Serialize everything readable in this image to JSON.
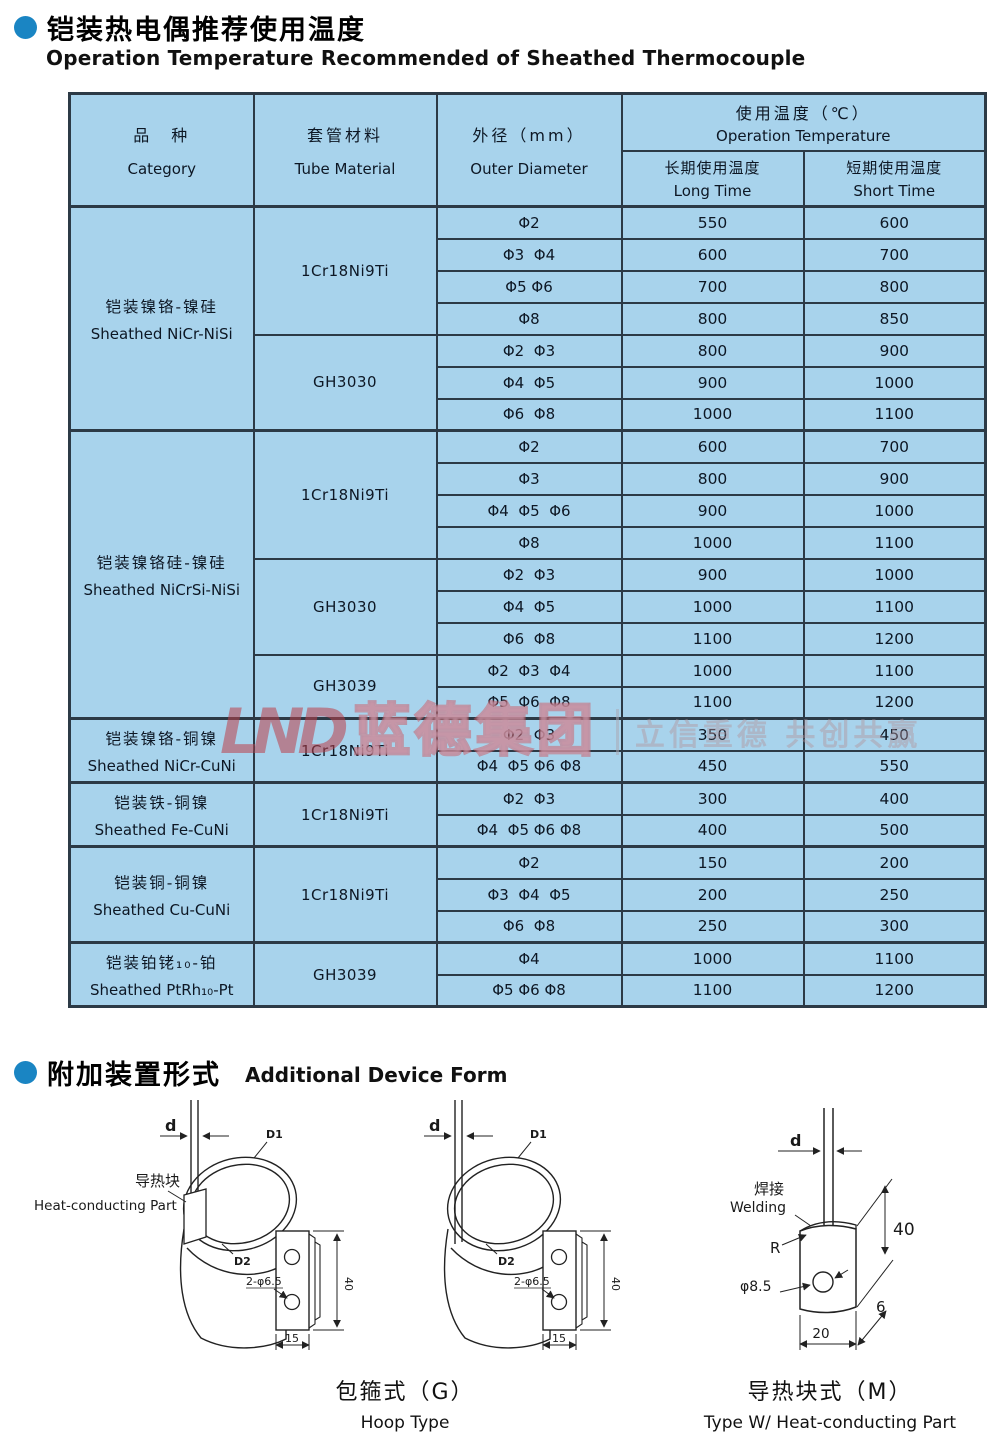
{
  "titles": {
    "main_zh": "铠装热电偶推荐使用温度",
    "main_en": "Operation Temperature Recommended of Sheathed Thermocouple",
    "section2_zh": "附加装置形式",
    "section2_en": "Additional Device Form"
  },
  "watermark": {
    "logo": "LND",
    "company": "蓝德集团",
    "slogan": "立信重德 共创共赢"
  },
  "colors": {
    "cell_blue": "#a8d3ec",
    "border": "#2c3a46",
    "bullet_blue": "#1a85c3",
    "watermark_red": "#bb404a"
  },
  "table": {
    "header": {
      "category_zh": "品　种",
      "category_en": "Category",
      "tube_zh": "套管材料",
      "tube_en": "Tube Material",
      "od_zh": "外径（mm）",
      "od_en": "Outer Diameter",
      "temp_zh": "使用温度（℃）",
      "temp_en": "Operation Temperature",
      "long_zh": "长期使用温度",
      "long_en": "Long Time",
      "short_zh": "短期使用温度",
      "short_en": "Short Time"
    },
    "sections": [
      {
        "category_zh": "铠装镍铬-镍硅",
        "category_en": "Sheathed NiCr-NiSi",
        "materials": [
          {
            "name": "1Cr18Ni9Ti",
            "rows": [
              {
                "od": "Φ2",
                "long": "550",
                "short": "600"
              },
              {
                "od": "Φ3  Φ4",
                "long": "600",
                "short": "700"
              },
              {
                "od": "Φ5 Φ6",
                "long": "700",
                "short": "800"
              },
              {
                "od": "Φ8",
                "long": "800",
                "short": "850"
              }
            ]
          },
          {
            "name": "GH3030",
            "rows": [
              {
                "od": "Φ2  Φ3",
                "long": "800",
                "short": "900"
              },
              {
                "od": "Φ4  Φ5",
                "long": "900",
                "short": "1000"
              },
              {
                "od": "Φ6  Φ8",
                "long": "1000",
                "short": "1100"
              }
            ]
          }
        ]
      },
      {
        "category_zh": "铠装镍铬硅-镍硅",
        "category_en": "Sheathed NiCrSi-NiSi",
        "materials": [
          {
            "name": "1Cr18Ni9Ti",
            "rows": [
              {
                "od": "Φ2",
                "long": "600",
                "short": "700"
              },
              {
                "od": "Φ3",
                "long": "800",
                "short": "900"
              },
              {
                "od": "Φ4  Φ5  Φ6",
                "long": "900",
                "short": "1000"
              },
              {
                "od": "Φ8",
                "long": "1000",
                "short": "1100"
              }
            ]
          },
          {
            "name": "GH3030",
            "rows": [
              {
                "od": "Φ2  Φ3",
                "long": "900",
                "short": "1000"
              },
              {
                "od": "Φ4  Φ5",
                "long": "1000",
                "short": "1100"
              },
              {
                "od": "Φ6  Φ8",
                "long": "1100",
                "short": "1200"
              }
            ]
          },
          {
            "name": "GH3039",
            "rows": [
              {
                "od": "Φ2  Φ3  Φ4",
                "long": "1000",
                "short": "1100"
              },
              {
                "od": "Φ5  Φ6  Φ8",
                "long": "1100",
                "short": "1200"
              }
            ]
          }
        ]
      },
      {
        "category_zh": "铠装镍铬-铜镍",
        "category_en": "Sheathed NiCr-CuNi",
        "materials": [
          {
            "name": "1Cr18Ni9Ti",
            "rows": [
              {
                "od": "Φ2  Φ3",
                "long": "350",
                "short": "450"
              },
              {
                "od": "Φ4  Φ5 Φ6 Φ8",
                "long": "450",
                "short": "550"
              }
            ]
          }
        ]
      },
      {
        "category_zh": "铠装铁-铜镍",
        "category_en": "Sheathed Fe-CuNi",
        "materials": [
          {
            "name": "1Cr18Ni9Ti",
            "rows": [
              {
                "od": "Φ2  Φ3",
                "long": "300",
                "short": "400"
              },
              {
                "od": "Φ4  Φ5 Φ6 Φ8",
                "long": "400",
                "short": "500"
              }
            ]
          }
        ]
      },
      {
        "category_zh": "铠装铜-铜镍",
        "category_en": "Sheathed Cu-CuNi",
        "materials": [
          {
            "name": "1Cr18Ni9Ti",
            "rows": [
              {
                "od": "Φ2",
                "long": "150",
                "short": "200"
              },
              {
                "od": "Φ3  Φ4  Φ5",
                "long": "200",
                "short": "250"
              },
              {
                "od": "Φ6  Φ8",
                "long": "250",
                "short": "300"
              }
            ]
          }
        ]
      },
      {
        "category_zh": "铠装铂铑₁₀-铂",
        "category_en": "Sheathed PtRh₁₀-Pt",
        "materials": [
          {
            "name": "GH3039",
            "rows": [
              {
                "od": "Φ4",
                "long": "1000",
                "short": "1100"
              },
              {
                "od": "Φ5 Φ6 Φ8",
                "long": "1100",
                "short": "1200"
              }
            ]
          }
        ]
      }
    ]
  },
  "diagrams": {
    "labels": {
      "d": "d",
      "D1": "D1",
      "D2": "D2",
      "holes": "2-φ6.5",
      "height40": "40",
      "width15": "15",
      "heat_zh": "导热块",
      "heat_en": "Heat-conducting Part",
      "weld_zh": "焊接",
      "weld_en": "Welding",
      "radius": "R",
      "hole85": "φ8.5",
      "width20": "20",
      "depth6": "6"
    },
    "captions": {
      "hoop_zh": "包箍式（G）",
      "hoop_en": "Hoop Type",
      "block_zh": "导热块式（M）",
      "block_en": "Type W/ Heat-conducting Part"
    }
  }
}
